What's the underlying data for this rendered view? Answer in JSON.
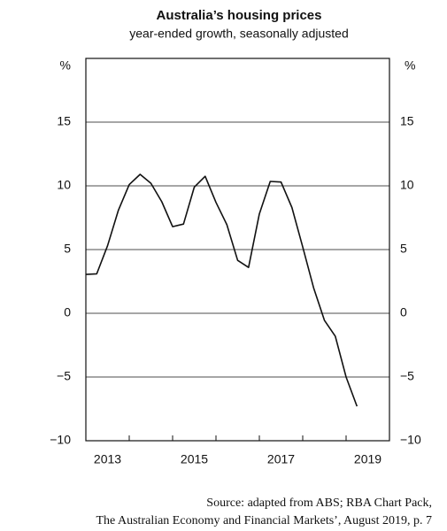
{
  "chart_data": {
    "type": "line",
    "title": "Australia’s housing prices",
    "subtitle": "year-ended growth, seasonally adjusted",
    "y_unit": "%",
    "source": [
      "Source: adapted from ABS; RBA Chart Pack,",
      "The Australian Economy and Financial Markets’, August 2019, p. 7"
    ],
    "x": [
      2013,
      2013.25,
      2013.5,
      2013.75,
      2014,
      2014.25,
      2014.5,
      2014.75,
      2015,
      2015.25,
      2015.5,
      2015.75,
      2016,
      2016.25,
      2016.5,
      2016.75,
      2017,
      2017.25,
      2017.5,
      2017.75,
      2018,
      2018.25,
      2018.5,
      2018.75,
      2019,
      2019.25
    ],
    "series": [
      {
        "color": "#111111",
        "values": [
          3.05,
          3.1,
          5.3,
          8.1,
          10.1,
          10.9,
          10.2,
          8.75,
          6.8,
          7.0,
          9.9,
          10.75,
          8.7,
          6.95,
          4.15,
          3.6,
          7.8,
          10.35,
          10.3,
          8.3,
          5.2,
          2.0,
          -0.55,
          -1.8,
          -5.0,
          -7.3
        ]
      }
    ],
    "xlim": [
      2013,
      2020
    ],
    "xticks": [
      {
        "value": 2013.5,
        "label": "2013"
      },
      {
        "value": 2015.5,
        "label": "2015"
      },
      {
        "value": 2017.5,
        "label": "2017"
      },
      {
        "value": 2019.5,
        "label": "2019"
      }
    ],
    "minor_xticks": [
      2014,
      2015,
      2016,
      2017,
      2018,
      2019
    ],
    "ylim": [
      -10,
      20
    ],
    "yticks": [
      {
        "value": -10,
        "label": "−10"
      },
      {
        "value": -5,
        "label": "−5"
      },
      0,
      5,
      10,
      15
    ],
    "grid": true
  }
}
